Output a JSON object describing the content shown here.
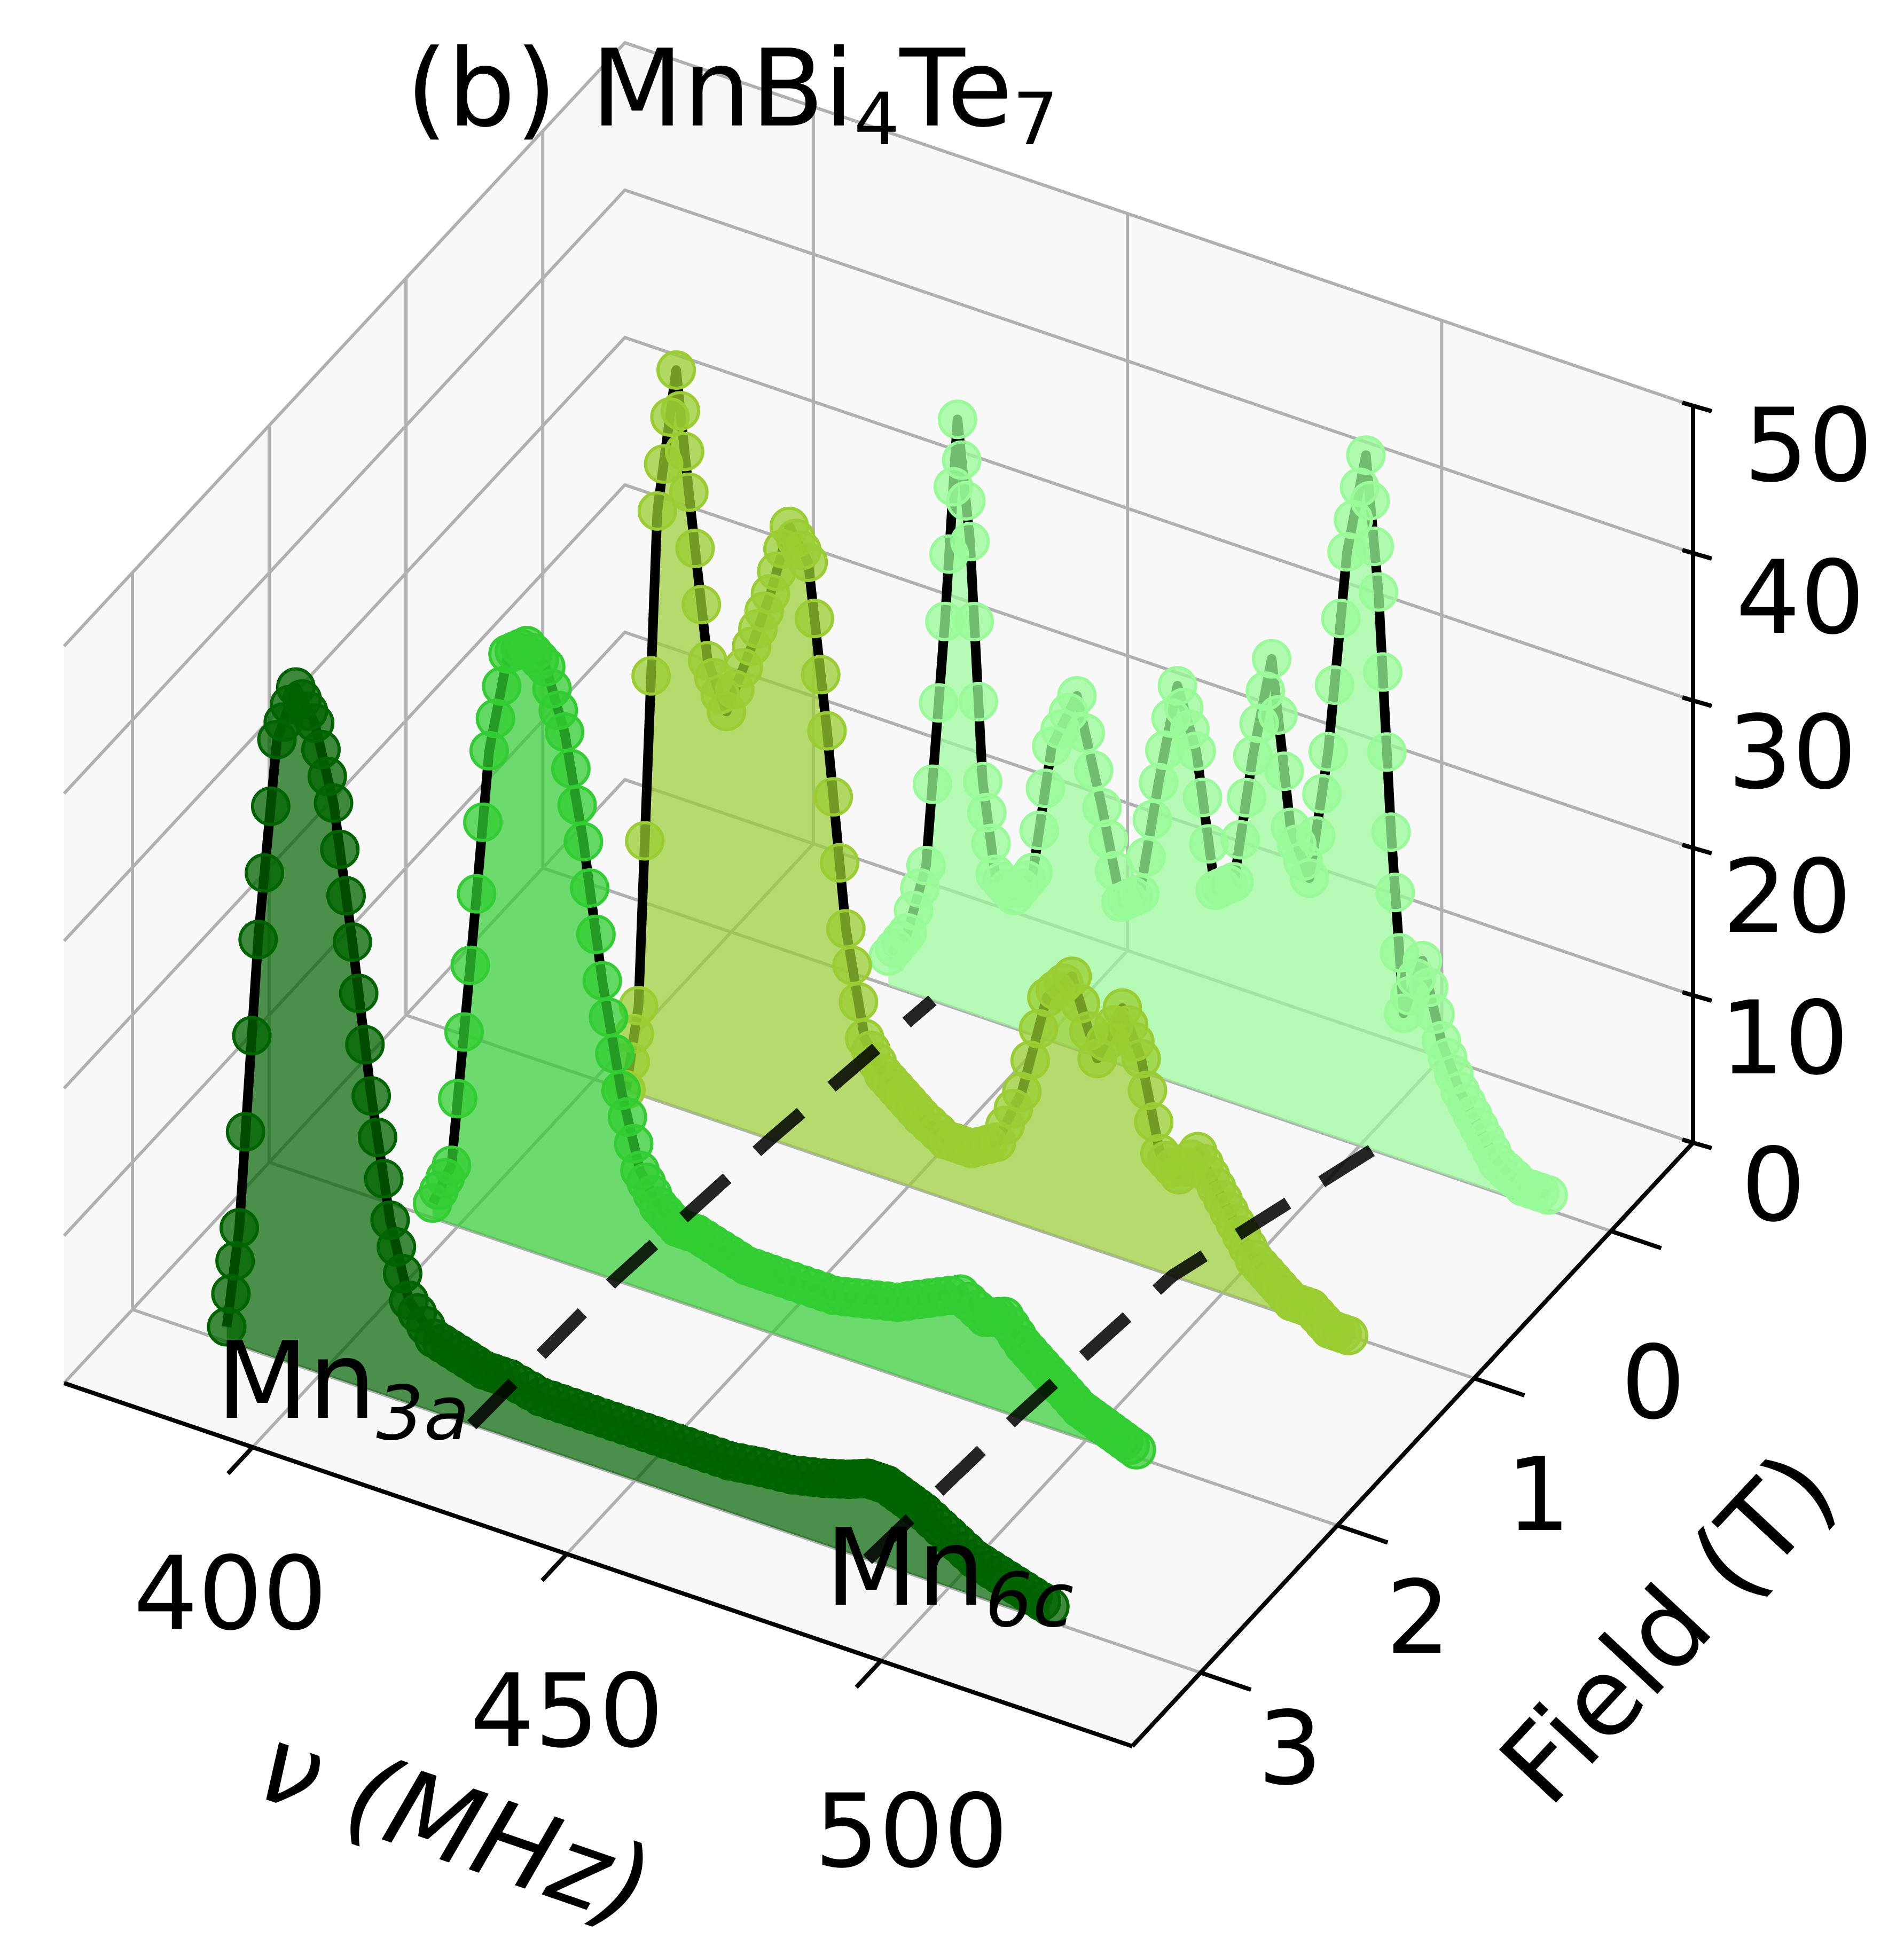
{
  "chart_data": {
    "type": "line",
    "title_prefix": "(b) MnBi",
    "title_sub1": "4",
    "title_mid": "Te",
    "title_sub2": "7",
    "xlabel": "ν (MHz)",
    "ylabel": "Field (T)",
    "zlabel": "",
    "x_ticks": [
      "400",
      "450",
      "500"
    ],
    "y_ticks": [
      "0",
      "1",
      "2",
      "3"
    ],
    "z_ticks": [
      "0",
      "10",
      "20",
      "30",
      "40",
      "50"
    ],
    "xlim": [
      370,
      540
    ],
    "ylim": [
      -0.6,
      3.5
    ],
    "zlim": [
      0,
      50
    ],
    "grid": true,
    "annotations": [
      {
        "text": "Mn",
        "sub": "3a"
      },
      {
        "text": "Mn",
        "sub": "6c"
      }
    ],
    "dashed_guides": [
      {
        "name": "Mn3a",
        "points": [
          [
            424,
            3.0
          ],
          [
            425,
            2.0
          ],
          [
            428,
            1.0
          ],
          [
            432,
            0.0
          ]
        ]
      },
      {
        "name": "Mn6c",
        "points": [
          [
            487,
            3.0
          ],
          [
            489,
            2.0
          ],
          [
            492,
            1.0
          ],
          [
            502,
            0.0
          ]
        ]
      }
    ],
    "series": [
      {
        "field": 0.0,
        "color": "#98fb98",
        "x": [
          425,
          428,
          431,
          434,
          436,
          438,
          440,
          442,
          445,
          448,
          451,
          455,
          459,
          462,
          465,
          468,
          471,
          474,
          477,
          480,
          483,
          486,
          489,
          492,
          495,
          498,
          501,
          503,
          505,
          507,
          510,
          513,
          516,
          519,
          522,
          526,
          530
        ],
        "z": [
          2,
          4,
          9,
          26,
          40,
          32,
          16,
          10,
          9,
          11,
          20,
          24,
          17,
          11,
          12,
          20,
          27,
          23,
          14,
          15,
          24,
          31,
          20,
          17,
          26,
          40,
          47,
          38,
          22,
          10,
          14,
          9,
          6,
          4,
          2,
          1,
          1
        ]
      },
      {
        "field": 1.0,
        "color": "#9acd32",
        "x": [
          405,
          407,
          410,
          413,
          415,
          418,
          421,
          425,
          428,
          431,
          434,
          437,
          440,
          443,
          446,
          449,
          452,
          456,
          460,
          464,
          468,
          472,
          476,
          480,
          484,
          487,
          490,
          493,
          496,
          499,
          502,
          505,
          508,
          511,
          514,
          517,
          520
        ],
        "z": [
          0,
          6,
          40,
          50,
          42,
          31,
          28,
          33,
          37,
          42,
          40,
          29,
          16,
          9,
          7,
          6,
          5,
          4,
          4,
          5,
          9,
          16,
          18,
          13,
          17,
          14,
          8,
          7,
          9,
          7,
          5,
          3,
          2,
          1,
          1,
          0,
          0
        ]
      },
      {
        "field": 2.0,
        "color": "#32cd32",
        "x": [
          396,
          399,
          402,
          405,
          408,
          411,
          414,
          417,
          420,
          423,
          426,
          429,
          432,
          435,
          438,
          442,
          446,
          450,
          455,
          460,
          465,
          470,
          475,
          480,
          484,
          487,
          490,
          493,
          496,
          499,
          502,
          505,
          508
        ],
        "z": [
          1,
          4,
          18,
          33,
          40,
          41,
          40,
          36,
          29,
          20,
          13,
          8,
          6,
          5,
          5,
          4.5,
          4,
          4,
          4,
          4,
          4.5,
          5,
          6,
          7,
          6,
          6.5,
          5,
          4,
          3,
          2,
          1.5,
          1,
          0.5
        ]
      },
      {
        "field": 3.0,
        "color": "#006400",
        "x": [
          385,
          387,
          390,
          393,
          396,
          399,
          402,
          405,
          408,
          411,
          414,
          418,
          422,
          426,
          430,
          435,
          440,
          445,
          450,
          455,
          460,
          465,
          470,
          475,
          480,
          484,
          487,
          490,
          493,
          496,
          500,
          504,
          508,
          512,
          516
        ],
        "z": [
          1,
          8,
          28,
          42,
          46,
          44,
          39,
          30,
          20,
          12,
          7,
          5,
          4.5,
          4,
          4,
          3.5,
          3.5,
          3.5,
          3.5,
          3.5,
          3.5,
          3.5,
          3.8,
          4,
          4.5,
          5,
          5.5,
          5.5,
          5,
          4.5,
          3.5,
          2.5,
          2,
          1.5,
          1
        ]
      }
    ]
  }
}
